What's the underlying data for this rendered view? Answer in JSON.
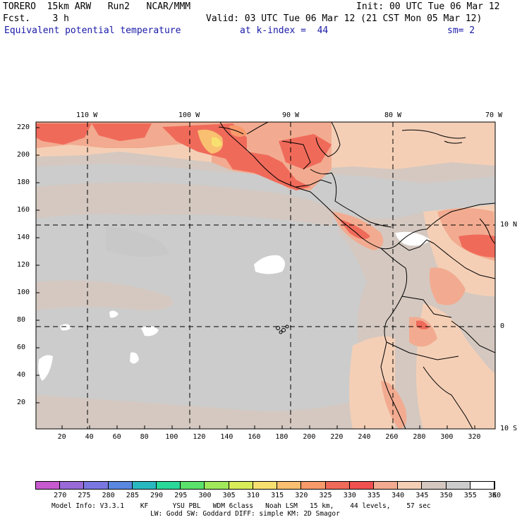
{
  "header": {
    "model_line": "TORERO  15km ARW   Run2   NCAR/MMM",
    "init": "Init: 00 UTC Tue 06 Mar 12",
    "fcst": "Fcst.    3 h",
    "valid": "Valid: 03 UTC Tue 06 Mar 12 (21 CST Mon 05 Mar 12)",
    "field_name": "Equivalent potential temperature",
    "level": "at k-index =  44",
    "smoothing": "sm= 2"
  },
  "map": {
    "lon_labels": [
      "110 W",
      "100 W",
      "90 W",
      "80 W",
      "70 W"
    ],
    "lat_labels": [
      "10 N",
      "0",
      "10 S"
    ],
    "y_ticks": [
      "220",
      "200",
      "180",
      "160",
      "140",
      "120",
      "100",
      "80",
      "60",
      "40",
      "20"
    ],
    "x_ticks": [
      "20",
      "40",
      "60",
      "80",
      "100",
      "120",
      "140",
      "160",
      "180",
      "200",
      "220",
      "240",
      "260",
      "280",
      "300",
      "320"
    ]
  },
  "colorbar": {
    "labels": [
      "270",
      "275",
      "280",
      "285",
      "290",
      "295",
      "300",
      "305",
      "310",
      "315",
      "320",
      "325",
      "330",
      "335",
      "340",
      "345",
      "350",
      "355",
      "360",
      "K"
    ],
    "colors": [
      "#c85ad0",
      "#9a6ad8",
      "#7a78e0",
      "#5a88e0",
      "#2ab8c0",
      "#2ad89a",
      "#5ae26a",
      "#a0e85a",
      "#d8ec5a",
      "#f8e070",
      "#f8c070",
      "#f89a6a",
      "#f06a5a",
      "#f05050",
      "#f2ab90",
      "#f4cfb6",
      "#d4c8c0",
      "#cccccc",
      "#ffffff"
    ]
  },
  "footer": {
    "line1": "Model Info: V3.3.1    KF      YSU PBL   WDM 6class   Noah LSM   15 km,    44 levels,    57 sec",
    "line2": "LW: Godd SW: Goddard DIFF: simple KM: 2D Smagor"
  }
}
